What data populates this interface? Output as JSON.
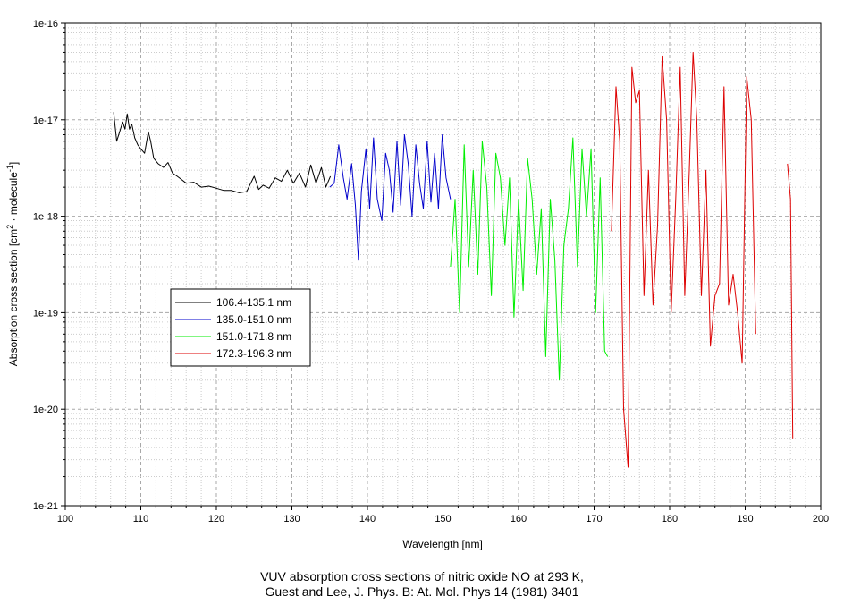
{
  "chart_data": {
    "type": "line",
    "xlabel": "Wavelength [nm]",
    "ylabel": "Absorption cross section [cm2 · molecule-1]",
    "ylabel_parts": {
      "main": "Absorption cross section [cm",
      "sup1": "2",
      "mid": " · molecule",
      "sup2": "-1",
      "end": "]"
    },
    "xlim": [
      100,
      200
    ],
    "ylim": [
      1e-21,
      1e-16
    ],
    "yscale": "log",
    "grid": true,
    "legend_position": "left-middle",
    "x_ticks": [
      "100",
      "110",
      "120",
      "130",
      "140",
      "150",
      "160",
      "170",
      "180",
      "190",
      "200"
    ],
    "y_ticks": [
      "1e-16",
      "1e-17",
      "1e-18",
      "1e-19",
      "1e-20",
      "1e-21"
    ],
    "y_tick_values": [
      1e-16,
      1e-17,
      1e-18,
      1e-19,
      1e-20,
      1e-21
    ],
    "series": [
      {
        "name": "106.4-135.1 nm",
        "color": "#000000",
        "x": [
          106.4,
          106.8,
          107.2,
          107.6,
          107.9,
          108.2,
          108.5,
          108.8,
          109.2,
          109.6,
          110.0,
          110.5,
          111.0,
          111.3,
          111.7,
          112.3,
          113.0,
          113.6,
          114.2,
          114.8,
          115.4,
          116.0,
          117.0,
          118.0,
          119.0,
          120.0,
          121.0,
          122.0,
          123.0,
          124.0,
          125.0,
          125.6,
          126.2,
          127.0,
          127.8,
          128.6,
          129.4,
          130.2,
          131.0,
          131.8,
          132.5,
          133.2,
          133.9,
          134.5,
          135.1
        ],
        "y": [
          1.2e-17,
          6e-18,
          7.5e-18,
          9.5e-18,
          8e-18,
          1.15e-17,
          8e-18,
          9e-18,
          6.5e-18,
          5.5e-18,
          5e-18,
          4.5e-18,
          7.5e-18,
          6e-18,
          4e-18,
          3.5e-18,
          3.2e-18,
          3.6e-18,
          2.8e-18,
          2.6e-18,
          2.4e-18,
          2.2e-18,
          2.25e-18,
          2e-18,
          2.05e-18,
          1.95e-18,
          1.85e-18,
          1.85e-18,
          1.75e-18,
          1.8e-18,
          2.6e-18,
          1.9e-18,
          2.1e-18,
          1.95e-18,
          2.5e-18,
          2.3e-18,
          3e-18,
          2.2e-18,
          2.8e-18,
          2e-18,
          3.4e-18,
          2.2e-18,
          3.2e-18,
          2e-18,
          2.6e-18
        ]
      },
      {
        "name": "135.0-151.0 nm",
        "color": "#0000cc",
        "x": [
          135.0,
          135.6,
          136.2,
          136.8,
          137.3,
          137.9,
          138.4,
          138.8,
          139.2,
          139.8,
          140.3,
          140.8,
          141.3,
          141.9,
          142.4,
          142.9,
          143.4,
          143.9,
          144.4,
          144.9,
          145.4,
          145.9,
          146.4,
          146.9,
          147.4,
          147.9,
          148.4,
          148.9,
          149.4,
          149.9,
          150.4,
          151.0
        ],
        "y": [
          2e-18,
          2.2e-18,
          5.5e-18,
          2.5e-18,
          1.5e-18,
          3.5e-18,
          1.3e-18,
          3.5e-19,
          1.8e-18,
          5e-18,
          1.2e-18,
          6.5e-18,
          1.5e-18,
          9e-19,
          4.5e-18,
          3e-18,
          1.1e-18,
          6e-18,
          1.3e-18,
          7e-18,
          3.5e-18,
          1e-18,
          5.5e-18,
          2.2e-18,
          1.2e-18,
          6e-18,
          1.4e-18,
          4.5e-18,
          1.2e-18,
          7e-18,
          2.5e-18,
          1.5e-18
        ]
      },
      {
        "name": "151.0-171.8 nm",
        "color": "#00ee00",
        "x": [
          151.0,
          151.6,
          152.2,
          152.8,
          153.4,
          154.0,
          154.6,
          155.2,
          155.8,
          156.4,
          157.0,
          157.6,
          158.2,
          158.8,
          159.4,
          160.0,
          160.6,
          161.2,
          161.8,
          162.4,
          163.0,
          163.6,
          164.2,
          164.8,
          165.4,
          166.0,
          166.6,
          167.2,
          167.8,
          168.4,
          169.0,
          169.6,
          170.2,
          170.8,
          171.4,
          171.8
        ],
        "y": [
          3e-19,
          1.5e-18,
          1e-19,
          5.5e-18,
          3e-19,
          3e-18,
          2.5e-19,
          6e-18,
          2e-18,
          1.5e-19,
          4.5e-18,
          2.5e-18,
          5e-19,
          2.5e-18,
          9e-20,
          1.5e-18,
          1.7e-19,
          4e-18,
          1.5e-18,
          2.5e-19,
          1.2e-18,
          3.5e-20,
          1.5e-18,
          3.5e-19,
          2e-20,
          5e-19,
          1.2e-18,
          6.5e-18,
          3e-19,
          5e-18,
          1e-18,
          5e-18,
          1e-19,
          2.5e-18,
          4e-20,
          3.5e-20
        ]
      },
      {
        "name": "172.3-196.3 nm",
        "color": "#dd0000",
        "x": [
          172.3,
          172.9,
          173.4,
          173.9,
          174.5,
          175.0,
          175.5,
          176.0,
          176.6,
          177.2,
          177.8,
          178.4,
          179.0,
          179.6,
          180.2,
          180.8,
          181.4,
          182.0,
          182.6,
          183.1,
          183.6,
          184.2,
          184.8,
          185.4,
          186.0,
          186.6,
          187.2,
          187.8,
          188.4,
          189.0,
          189.6,
          190.2,
          190.8,
          191.4,
          192.0,
          194.0,
          195.6,
          196.0,
          196.3
        ],
        "y": [
          7e-19,
          2.2e-17,
          6e-18,
          1e-20,
          2.5e-21,
          3.5e-17,
          1.5e-17,
          2e-17,
          1.5e-19,
          3e-18,
          1.2e-19,
          8e-19,
          4.5e-17,
          1e-17,
          1e-19,
          1.5e-18,
          3.5e-17,
          1.5e-19,
          3e-18,
          5e-17,
          1e-17,
          1.5e-19,
          3e-18,
          4.5e-20,
          1.5e-19,
          2e-19,
          2.2e-17,
          1.2e-19,
          2.5e-19,
          1e-19,
          3e-20,
          2.8e-17,
          1e-17,
          6e-20,
          null,
          null,
          3.5e-18,
          1.5e-18,
          5e-21
        ]
      }
    ]
  },
  "caption": {
    "line1": "VUV absorption cross sections of nitric oxide NO at 293 K,",
    "line2": "Guest and Lee, J. Phys. B: At. Mol. Phys 14 (1981) 3401"
  }
}
